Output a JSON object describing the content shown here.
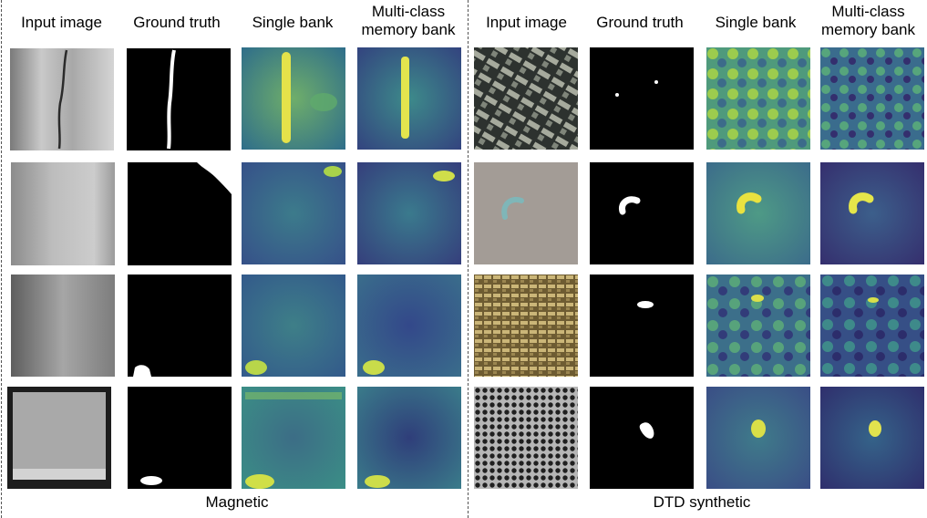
{
  "figure": {
    "left_group": {
      "label": "Magnetic",
      "headers": [
        "Input image",
        "Ground truth",
        "Single bank",
        "Multi-class\nmemory bank"
      ]
    },
    "right_group": {
      "label": "DTD synthetic",
      "headers": [
        "Input image",
        "Ground truth",
        "Single bank",
        "Multi-class\nmemory bank"
      ]
    }
  }
}
